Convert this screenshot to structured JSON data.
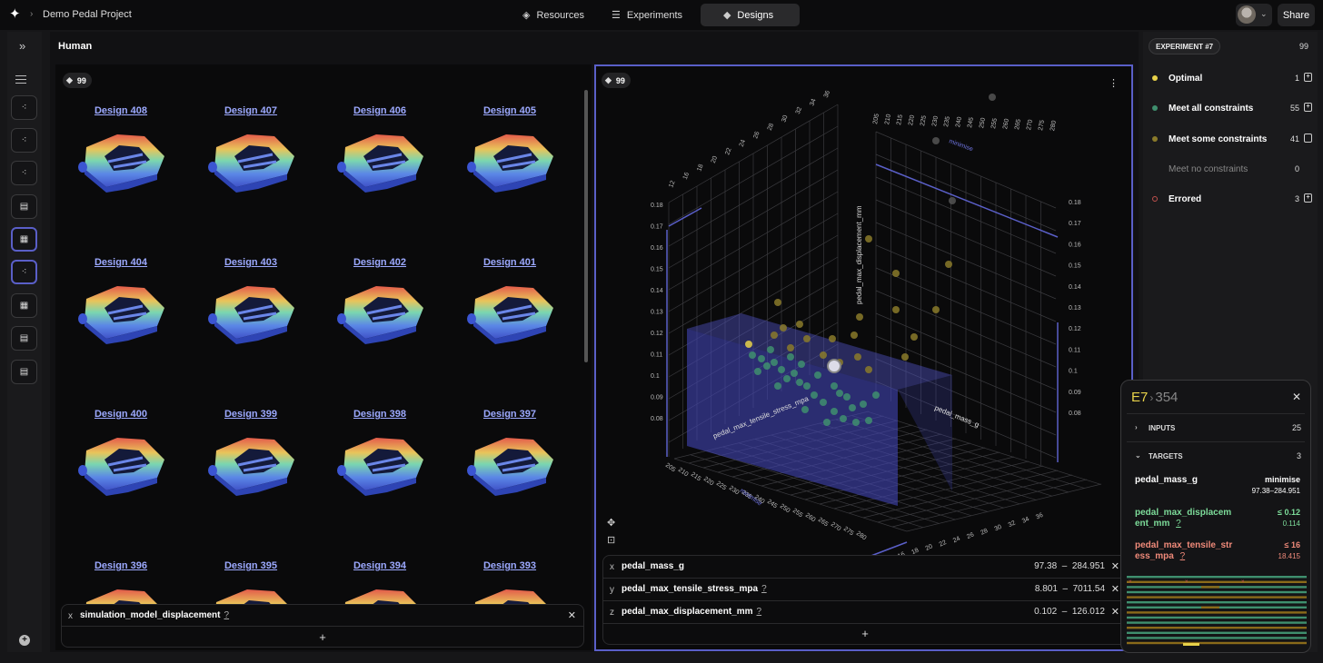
{
  "topbar": {
    "project_name": "Demo Pedal Project",
    "tabs": [
      {
        "label": "Resources",
        "icon": "layers-icon"
      },
      {
        "label": "Experiments",
        "icon": "sliders-icon"
      },
      {
        "label": "Designs",
        "icon": "cube-icon",
        "active": true
      }
    ],
    "share_label": "Share"
  },
  "main": {
    "title": "Human",
    "grid_panel": {
      "count": "99",
      "designs": [
        "Design 408",
        "Design 407",
        "Design 406",
        "Design 405",
        "Design 404",
        "Design 403",
        "Design 402",
        "Design 401",
        "Design 400",
        "Design 399",
        "Design 398",
        "Design 397",
        "Design 396",
        "Design 395",
        "Design 394",
        "Design 393"
      ],
      "property": {
        "axis": "x",
        "name": "simulation_model_displacement",
        "help": "?"
      },
      "add_label": "+"
    },
    "plot_panel": {
      "count": "99",
      "axes": [
        {
          "axis": "x",
          "name": "pedal_mass_g",
          "help": "",
          "range_min": "97.38",
          "range_max": "284.951"
        },
        {
          "axis": "y",
          "name": "pedal_max_tensile_stress_mpa",
          "help": "?",
          "range_min": "8.801",
          "range_max": "7011.54"
        },
        {
          "axis": "z",
          "name": "pedal_max_displacement_mm",
          "help": "?",
          "range_min": "0.102",
          "range_max": "126.012"
        }
      ],
      "range_sep": "–",
      "axis_titles": {
        "x": "pedal_mass_g",
        "y": "pedal_max_tensile_stress_mpa",
        "z": "pedal_max_displacement_mm"
      },
      "minimise_label": "minimise",
      "mass_ticks": [
        "205",
        "210",
        "215",
        "220",
        "225",
        "230",
        "235",
        "240",
        "245",
        "250",
        "255",
        "260",
        "265",
        "270",
        "275",
        "280"
      ],
      "stress_ticks": [
        "12",
        "16",
        "18",
        "20",
        "22",
        "24",
        "26",
        "28",
        "30",
        "32",
        "34",
        "36"
      ],
      "disp_ticks": [
        "0.18",
        "0.17",
        "0.16",
        "0.15",
        "0.14",
        "0.13",
        "0.12",
        "0.11",
        "0.1",
        "0.09",
        "0.08"
      ],
      "add_label": "+"
    }
  },
  "sidebar": {
    "experiment_label": "EXPERIMENT #7",
    "experiment_count": "99",
    "statuses": [
      {
        "label": "Optimal",
        "count": "1",
        "color": "#e8d24a",
        "muted": false
      },
      {
        "label": "Meet all constraints",
        "count": "55",
        "color": "#3f8f6e",
        "muted": false
      },
      {
        "label": "Meet some constraints",
        "count": "41",
        "color": "#8a7a2a",
        "muted": false
      },
      {
        "label": "Meet no constraints",
        "count": "0",
        "color": "",
        "muted": true
      },
      {
        "label": "Errored",
        "count": "3",
        "color": "#c0504d",
        "muted": false
      }
    ]
  },
  "detail": {
    "experiment": "E7",
    "separator": "›",
    "design_id": "354",
    "inputs_label": "INPUTS",
    "inputs_count": "25",
    "targets_label": "TARGETS",
    "targets_count": "3",
    "targets": [
      {
        "name": "pedal_mass_g",
        "goal": "minimise",
        "value": "97.38–284.951",
        "color": "#ffffff"
      },
      {
        "name": "pedal_max_displacement_mm",
        "goal": "≤ 0.12",
        "value": "0.114",
        "color": "#7ddc9a",
        "help": "?"
      },
      {
        "name": "pedal_max_tensile_stress_mpa",
        "goal": "≤ 16",
        "value": "18.415",
        "color": "#f08a7a",
        "help": "?"
      }
    ],
    "colors": {
      "ok": "#3f8f6e",
      "some": "#8a6a1a",
      "optimal": "#e8d24a",
      "error": "#c0504d"
    }
  }
}
